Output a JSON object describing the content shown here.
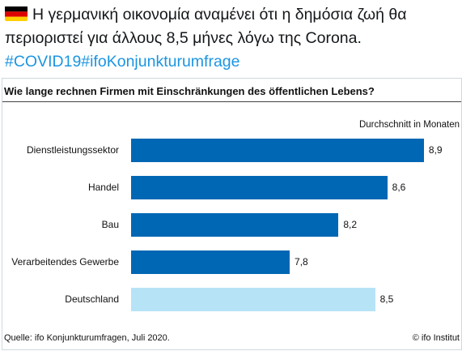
{
  "tweet": {
    "flag_icon": "germany-flag-icon",
    "text": "Η γερμανική οικονομία αναμένει ότι η δημόσια ζωή θα περιοριστεί για άλλους 8,5 μήνες λόγω της Corona.",
    "hashtags": [
      "#COVID19",
      "#ifoKonjunkturumfrage"
    ],
    "hashtag_color": "#1b95e0"
  },
  "chart_data": {
    "type": "bar",
    "orientation": "horizontal",
    "title": "Wie lange rechnen Firmen mit Einschränkungen des öffentlichen Lebens?",
    "unit_label": "Durchschnitt in Monaten",
    "categories": [
      "Dienstleistungssektor",
      "Handel",
      "Bau",
      "Verarbeitendes Gewerbe",
      "Deutschland"
    ],
    "values": [
      8.9,
      8.6,
      8.2,
      7.8,
      8.5
    ],
    "value_labels": [
      "8,9",
      "8,6",
      "8,2",
      "7,8",
      "8,5"
    ],
    "colors": [
      "#0067b4",
      "#0067b4",
      "#0067b4",
      "#0067b4",
      "#b7e3f7"
    ],
    "xlim": [
      6.5,
      9.0
    ],
    "grid": false,
    "source": "Quelle: ifo Konjunkturumfragen, Juli 2020.",
    "credit": "© ifo Institut"
  }
}
